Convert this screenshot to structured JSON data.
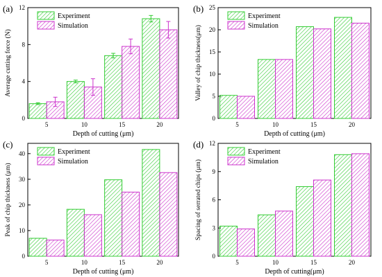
{
  "chart_data": [
    {
      "panel_label": "(a)",
      "type": "bar",
      "categories": [
        "5",
        "10",
        "15",
        "20"
      ],
      "series": [
        {
          "name": "Experiment",
          "values": [
            1.6,
            4.0,
            6.8,
            10.8
          ],
          "errors": [
            0.1,
            0.15,
            0.25,
            0.35
          ]
        },
        {
          "name": "Simulation",
          "values": [
            1.8,
            3.4,
            7.8,
            9.6
          ],
          "errors": [
            0.5,
            0.9,
            0.8,
            0.9
          ]
        }
      ],
      "xlabel": "Depth of cutting (μm)",
      "ylabel": "Average cutting force (N)",
      "ylim": [
        0,
        12
      ],
      "yticks": [
        0,
        4,
        8,
        12
      ],
      "legend": "top-left"
    },
    {
      "panel_label": "(b)",
      "type": "bar",
      "categories": [
        "5",
        "10",
        "15",
        "20"
      ],
      "series": [
        {
          "name": "Experiment",
          "values": [
            5.2,
            13.3,
            20.7,
            22.8
          ]
        },
        {
          "name": "Simulation",
          "values": [
            5.0,
            13.3,
            20.2,
            21.5
          ]
        }
      ],
      "xlabel": "Depth of cutting (μm)",
      "ylabel": "Valley of chip thickness(μm)",
      "ylim": [
        0,
        25
      ],
      "yticks": [
        0,
        5,
        10,
        15,
        20,
        25
      ],
      "legend": "top-left"
    },
    {
      "panel_label": "(c)",
      "type": "bar",
      "categories": [
        "5",
        "10",
        "15",
        "20"
      ],
      "series": [
        {
          "name": "Experiment",
          "values": [
            7.0,
            18.3,
            29.8,
            41.6
          ]
        },
        {
          "name": "Simulation",
          "values": [
            6.3,
            16.2,
            25.0,
            32.6
          ]
        }
      ],
      "xlabel": "Depth of cutting (μm)",
      "ylabel": "Peak of chip thickness (μm)",
      "ylim": [
        0,
        44
      ],
      "yticks": [
        0,
        10,
        20,
        30,
        40
      ],
      "legend": "top-left"
    },
    {
      "panel_label": "(d)",
      "type": "bar",
      "categories": [
        "5",
        "10",
        "15",
        "20"
      ],
      "series": [
        {
          "name": "Experiment",
          "values": [
            3.2,
            4.4,
            7.4,
            10.8
          ]
        },
        {
          "name": "Simulation",
          "values": [
            2.9,
            4.8,
            8.1,
            10.9
          ]
        }
      ],
      "xlabel": "Depth of cutting(μm)",
      "ylabel": "Spacing of serrated chips (μm)",
      "ylim": [
        0,
        12
      ],
      "yticks": [
        0,
        3,
        6,
        9,
        12
      ],
      "legend": "top-left"
    }
  ],
  "colors": {
    "experiment": "#33cc33",
    "simulation": "#cc33cc",
    "axis": "#000000"
  }
}
